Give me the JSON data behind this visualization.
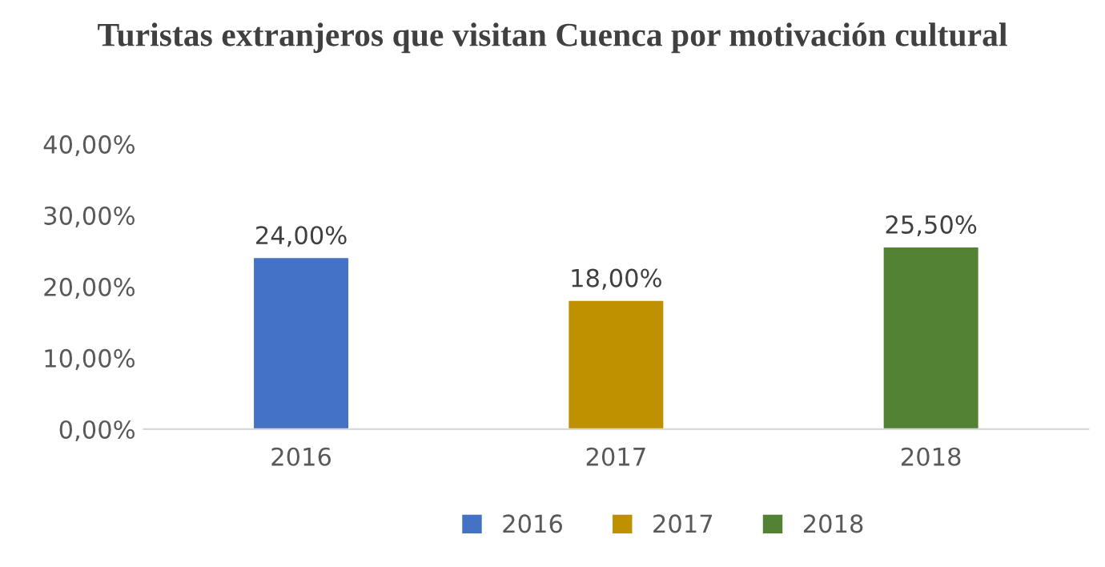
{
  "chart_data": {
    "type": "bar",
    "title": "Turistas extranjeros que visitan Cuenca por motivación cultural",
    "categories": [
      "2016",
      "2017",
      "2018"
    ],
    "series": [
      {
        "name": "2016",
        "color": "#4472c4",
        "values": [
          24,
          null,
          null
        ],
        "value_labels": [
          "24,00%",
          null,
          null
        ]
      },
      {
        "name": "2017",
        "color": "#bf9000",
        "values": [
          null,
          18,
          null
        ],
        "value_labels": [
          null,
          "18,00%",
          null
        ]
      },
      {
        "name": "2018",
        "color": "#548235",
        "values": [
          null,
          null,
          25.5
        ],
        "value_labels": [
          null,
          null,
          "25,50%"
        ]
      }
    ],
    "ylim": [
      0,
      40
    ],
    "yticks": [
      {
        "value": 0,
        "label": "0,00%"
      },
      {
        "value": 10,
        "label": "10,00%"
      },
      {
        "value": 20,
        "label": "20,00%"
      },
      {
        "value": 30,
        "label": "30,00%"
      },
      {
        "value": 40,
        "label": "40,00%"
      }
    ],
    "legend": "bottom"
  }
}
